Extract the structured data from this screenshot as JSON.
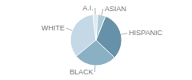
{
  "chart_data": {
    "type": "pie",
    "categories": [
      "WHITE",
      "BLACK",
      "HISPANIC",
      "ASIAN",
      "A.I."
    ],
    "values": [
      34,
      27,
      31,
      5,
      3
    ],
    "colors": [
      "#c5d8e5",
      "#8ab0c4",
      "#6691a8",
      "#b0ccd8",
      "#ddeaf2"
    ]
  }
}
